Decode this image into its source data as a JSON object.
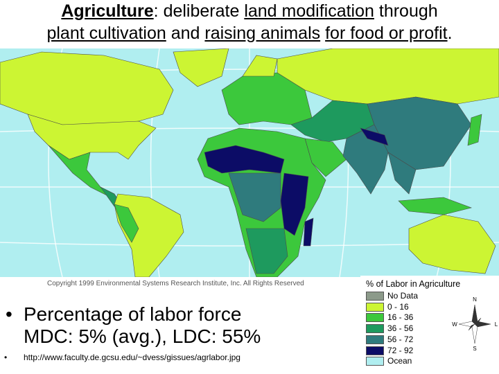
{
  "title": {
    "lines": [
      [
        {
          "text": "Agriculture",
          "bold": true,
          "underline": true
        },
        {
          "text": ": deliberate "
        },
        {
          "text": "land modification",
          "underline": true
        },
        {
          "text": " through"
        }
      ],
      [
        {
          "text": "plant cultivation",
          "underline": true
        },
        {
          "text": " and "
        },
        {
          "text": "raising animals",
          "underline": true
        },
        {
          "text": " "
        },
        {
          "text": "for food or profit",
          "underline": true
        },
        {
          "text": "."
        }
      ]
    ]
  },
  "map": {
    "copyright": "Copyright 1999 Environmental Systems Research Institute, Inc. All Rights Reserved",
    "legend": {
      "title": "% of Labor in Agriculture",
      "items": [
        {
          "label": "No Data",
          "color": "#8c9a8a"
        },
        {
          "label": "0 - 16",
          "color": "#ccf533"
        },
        {
          "label": "16 - 36",
          "color": "#3cc83c"
        },
        {
          "label": "36 - 56",
          "color": "#1e9a5e"
        },
        {
          "label": "56 - 72",
          "color": "#2f7b7d"
        },
        {
          "label": "72 - 92",
          "color": "#0c0c66"
        },
        {
          "label": "Ocean",
          "color": "#b0eef0"
        }
      ]
    },
    "compass": {
      "n": "N",
      "s": "S",
      "e": "L",
      "w": "W"
    }
  },
  "bullets": [
    {
      "lines": [
        "Percentage of labor force",
        "MDC: 5% (avg.), LDC: 55%"
      ]
    },
    {
      "lines": [
        "http://www.faculty.de.gcsu.edu/~dvess/gissues/agrlabor.jpg"
      ]
    }
  ]
}
